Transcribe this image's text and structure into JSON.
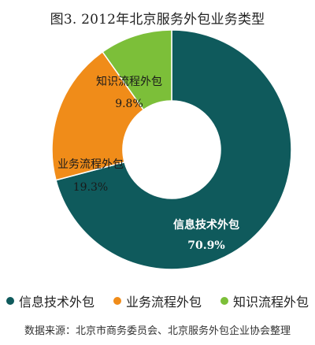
{
  "chart_data": {
    "type": "pie",
    "title": "图3. 2012年北京服务外包业务类型",
    "slices": [
      {
        "name": "信息技术外包",
        "value": 70.9,
        "value_label": "70.9%",
        "color": "#0f5a5c"
      },
      {
        "name": "业务流程外包",
        "value": 19.3,
        "value_label": "19.3%",
        "color": "#f08c19"
      },
      {
        "name": "知识流程外包",
        "value": 9.8,
        "value_label": "9.8%",
        "color": "#7cbf39"
      }
    ],
    "legend_position": "bottom",
    "source": "数据来源：北京市商务委员会、北京服务外包企业协会整理",
    "donut": true
  }
}
